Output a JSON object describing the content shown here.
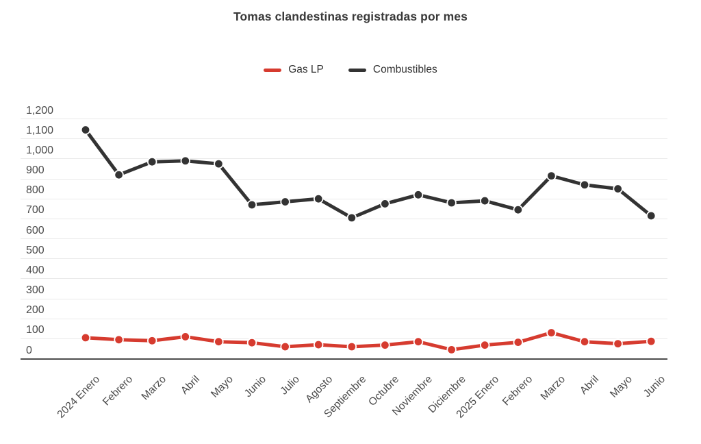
{
  "title": "Tomas clandestinas registradas por mes",
  "colors": {
    "gas_lp": "#d63b2f",
    "combustibles": "#333333",
    "gridline": "#e9e9e9",
    "axis_baseline": "#4d4d4d",
    "axis_text": "#4a4a4a",
    "title_text": "#3a3a3a"
  },
  "chart_data": {
    "type": "line",
    "title": "Tomas clandestinas registradas por mes",
    "categories": [
      "2024 Enero",
      "Febrero",
      "Marzo",
      "Abril",
      "Mayo",
      "Junio",
      "Julio",
      "Agosto",
      "Septiembre",
      "Octubre",
      "Noviembre",
      "Diciembre",
      "2025 Enero",
      "Febrero",
      "Marzo",
      "Abril",
      "Mayo",
      "Junio"
    ],
    "series": [
      {
        "name": "Gas LP",
        "color": "#d63b2f",
        "values": [
          105,
          95,
          90,
          110,
          85,
          80,
          60,
          70,
          60,
          68,
          85,
          45,
          68,
          82,
          130,
          85,
          75,
          87
        ]
      },
      {
        "name": "Combustibles",
        "color": "#333333",
        "values": [
          1145,
          920,
          985,
          990,
          975,
          770,
          785,
          800,
          705,
          775,
          820,
          780,
          790,
          745,
          915,
          870,
          850,
          715
        ]
      }
    ],
    "xlabel": "",
    "ylabel": "",
    "ylim": [
      0,
      1200
    ],
    "ytick_step": 100,
    "ytick_labels": [
      "0",
      "100",
      "200",
      "300",
      "400",
      "500",
      "600",
      "700",
      "800",
      "900",
      "1,000",
      "1,100",
      "1,200"
    ],
    "grid": "horizontal",
    "legend_position": "top",
    "x_label_rotation": -45,
    "marker": "circle",
    "line_width": 5
  }
}
